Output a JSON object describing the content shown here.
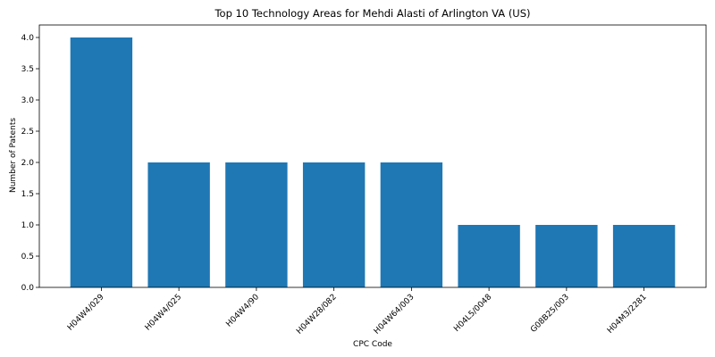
{
  "chart_data": {
    "type": "bar",
    "title": "Top 10 Technology Areas for Mehdi Alasti of Arlington VA (US)",
    "xlabel": "CPC Code",
    "ylabel": "Number of Patents",
    "categories": [
      "H04W4/029",
      "H04W4/025",
      "H04W4/90",
      "H04W28/082",
      "H04W64/003",
      "H04L5/0048",
      "G08B25/003",
      "H04M3/2281"
    ],
    "values": [
      4,
      2,
      2,
      2,
      2,
      1,
      1,
      1
    ],
    "ylim": [
      0,
      4.2
    ],
    "yticks": [
      "0.0",
      "0.5",
      "1.0",
      "1.5",
      "2.0",
      "2.5",
      "3.0",
      "3.5",
      "4.0"
    ],
    "grid": false,
    "bar_color": "#1f77b4"
  }
}
